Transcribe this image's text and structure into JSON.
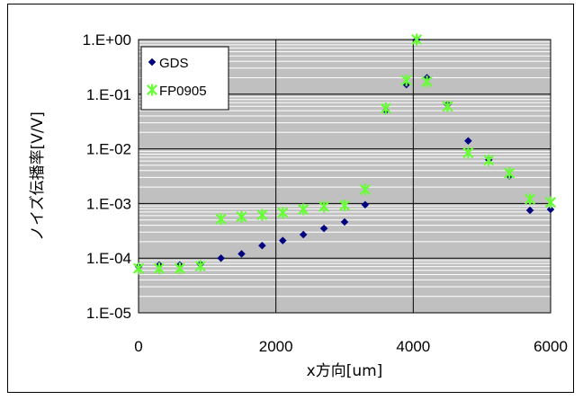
{
  "chart_data": {
    "type": "scatter",
    "title": "",
    "xlabel": "x方向[um]",
    "ylabel": "ノイズ伝播率[V/V]",
    "xlim": [
      0,
      6000
    ],
    "ylim": [
      1e-05,
      1
    ],
    "yscale": "log",
    "x_ticks": [
      0,
      2000,
      4000,
      6000
    ],
    "x_tick_labels": [
      "0",
      "2000",
      "4000",
      "6000"
    ],
    "y_ticks": [
      1,
      0.1,
      0.01,
      0.001,
      0.0001,
      1e-05
    ],
    "y_tick_labels": [
      "1.E+00",
      "1.E-01",
      "1.E-02",
      "1.E-03",
      "1.E-04",
      "1.E-05"
    ],
    "grid": true,
    "plot_background": "#c0c0c0",
    "legend_position": "top-left",
    "series": [
      {
        "name": "GDS",
        "marker": "diamond",
        "color": "#000080",
        "x": [
          0,
          300,
          600,
          900,
          1200,
          1500,
          1800,
          2100,
          2400,
          2700,
          3000,
          3300,
          3600,
          3900,
          4050,
          4200,
          4500,
          4800,
          5100,
          5400,
          5700,
          6000
        ],
        "y": [
          7e-05,
          7.5e-05,
          7.5e-05,
          7.8e-05,
          0.0001,
          0.00012,
          0.00017,
          0.00021,
          0.00027,
          0.00035,
          0.00046,
          0.00095,
          0.05,
          0.15,
          1.0,
          0.2,
          0.065,
          0.014,
          0.0063,
          0.0032,
          0.00075,
          0.00078
        ]
      },
      {
        "name": "FP0905",
        "marker": "asterisk",
        "color": "#66ff33",
        "x": [
          0,
          300,
          600,
          900,
          1200,
          1500,
          1800,
          2100,
          2400,
          2700,
          3000,
          3300,
          3600,
          3900,
          4050,
          4200,
          4500,
          4800,
          5100,
          5400,
          5700,
          6000
        ],
        "y": [
          6.5e-05,
          6.5e-05,
          6.5e-05,
          7.2e-05,
          0.00052,
          0.00057,
          0.00062,
          0.00068,
          0.00078,
          0.00088,
          0.00092,
          0.0018,
          0.055,
          0.18,
          1.0,
          0.17,
          0.06,
          0.0085,
          0.0062,
          0.0036,
          0.0012,
          0.00105
        ]
      }
    ]
  }
}
